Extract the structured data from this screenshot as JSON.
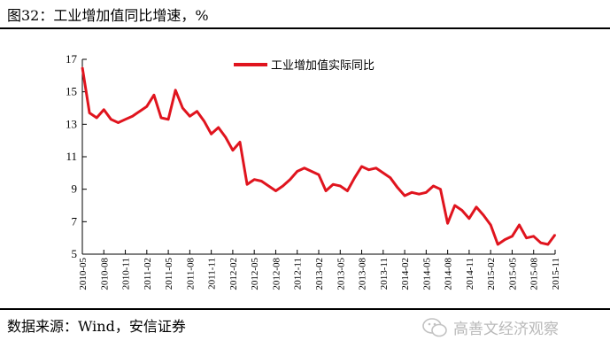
{
  "header": {
    "title": "图32：工业增加值同比增速，%"
  },
  "footer": {
    "source": "数据来源：Wind，安信证券",
    "watermark": "高善文经济观察"
  },
  "chart_data": {
    "type": "line",
    "title": "图32：工业增加值同比增速，%",
    "xlabel": "",
    "ylabel": "",
    "ylim": [
      5,
      17
    ],
    "yticks": [
      5,
      7,
      9,
      11,
      13,
      15,
      17
    ],
    "grid": false,
    "legend_position": "top",
    "x_tick_labels": [
      "2010-05",
      "2010-08",
      "2010-11",
      "2011-02",
      "2011-05",
      "2011-08",
      "2011-11",
      "2012-02",
      "2012-05",
      "2012-08",
      "2012-11",
      "2013-02",
      "2013-05",
      "2013-08",
      "2013-11",
      "2014-02",
      "2014-05",
      "2014-08",
      "2014-11",
      "2015-02",
      "2015-05",
      "2015-08",
      "2015-11"
    ],
    "series": [
      {
        "name": "工业增加值实际同比",
        "color": "#e0141e",
        "values": [
          16.5,
          13.7,
          13.4,
          13.9,
          13.3,
          13.1,
          13.3,
          13.5,
          13.8,
          14.1,
          14.8,
          13.4,
          13.3,
          15.1,
          14.0,
          13.5,
          13.8,
          13.2,
          12.4,
          12.8,
          12.2,
          11.4,
          11.9,
          9.3,
          9.6,
          9.5,
          9.2,
          8.9,
          9.2,
          9.6,
          10.1,
          10.3,
          10.1,
          9.9,
          8.9,
          9.3,
          9.2,
          8.9,
          9.7,
          10.4,
          10.2,
          10.3,
          10.0,
          9.7,
          9.1,
          8.6,
          8.8,
          8.7,
          8.8,
          9.2,
          9.0,
          6.9,
          8.0,
          7.7,
          7.2,
          7.9,
          7.4,
          6.8,
          5.6,
          5.9,
          6.1,
          6.8,
          6.0,
          6.1,
          5.7,
          5.6,
          6.2
        ]
      }
    ]
  }
}
